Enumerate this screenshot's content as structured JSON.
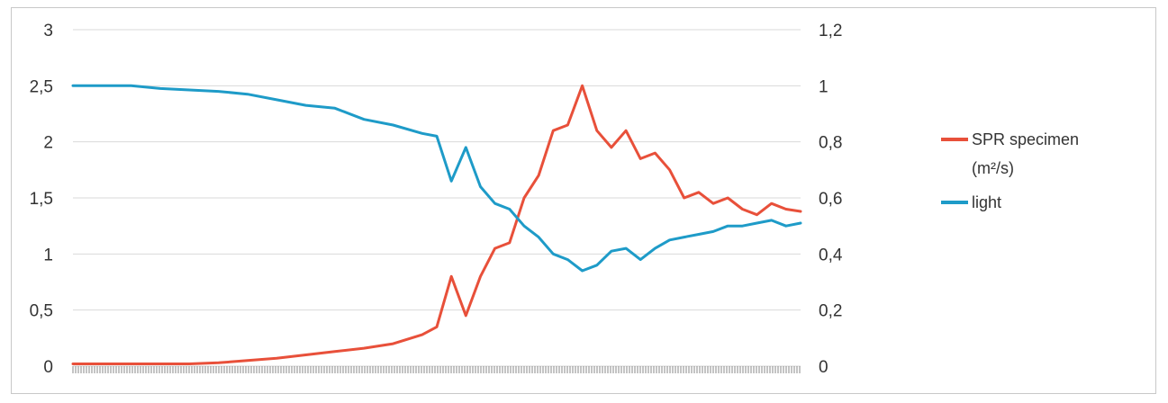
{
  "chart_data": {
    "type": "line",
    "title": "",
    "xlabel": "",
    "ylabel": "",
    "y_left": {
      "range": [
        0,
        3
      ],
      "ticks": [
        "0",
        "0,5",
        "1",
        "1,5",
        "2",
        "2,5",
        "3"
      ]
    },
    "y_right": {
      "range": [
        0,
        1.2
      ],
      "ticks": [
        "0",
        "0,2",
        "0,4",
        "0,6",
        "0,8",
        "1",
        "1,2"
      ]
    },
    "grid": true,
    "legend_position": "right",
    "x": [
      0,
      0.04,
      0.08,
      0.12,
      0.16,
      0.2,
      0.24,
      0.28,
      0.32,
      0.36,
      0.4,
      0.44,
      0.48,
      0.5,
      0.52,
      0.54,
      0.56,
      0.58,
      0.6,
      0.62,
      0.64,
      0.66,
      0.68,
      0.7,
      0.72,
      0.74,
      0.76,
      0.78,
      0.8,
      0.82,
      0.84,
      0.86,
      0.88,
      0.9,
      0.92,
      0.94,
      0.96,
      0.98,
      1.0
    ],
    "series": [
      {
        "name": "SPR specimen",
        "name_line2": "(m²/s)",
        "axis": "left",
        "color": "#E8503A",
        "values": [
          0.02,
          0.02,
          0.02,
          0.02,
          0.02,
          0.03,
          0.05,
          0.07,
          0.1,
          0.13,
          0.16,
          0.2,
          0.28,
          0.35,
          0.8,
          0.45,
          0.8,
          1.05,
          1.1,
          1.5,
          1.7,
          2.1,
          2.15,
          2.5,
          2.1,
          1.95,
          2.1,
          1.85,
          1.9,
          1.75,
          1.5,
          1.55,
          1.45,
          1.5,
          1.4,
          1.35,
          1.45,
          1.4,
          1.38
        ]
      },
      {
        "name": "light",
        "axis": "right",
        "color": "#1E9BC8",
        "values": [
          1.0,
          1.0,
          1.0,
          0.99,
          0.985,
          0.98,
          0.97,
          0.95,
          0.93,
          0.92,
          0.88,
          0.86,
          0.83,
          0.82,
          0.66,
          0.78,
          0.64,
          0.58,
          0.56,
          0.5,
          0.46,
          0.4,
          0.38,
          0.34,
          0.36,
          0.41,
          0.42,
          0.38,
          0.42,
          0.45,
          0.46,
          0.47,
          0.48,
          0.5,
          0.5,
          0.51,
          0.52,
          0.5,
          0.51
        ]
      }
    ]
  },
  "colors": {
    "grid": "#d9d9d9",
    "axis_ticks": "#888888"
  }
}
